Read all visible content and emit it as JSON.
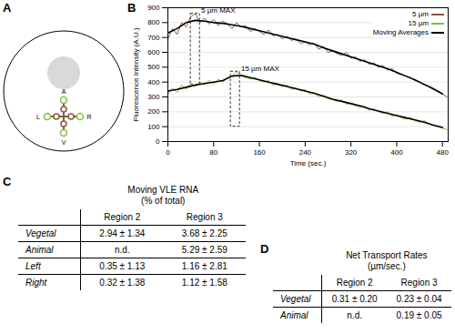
{
  "panel_a": {
    "label": "A",
    "points": [
      "A",
      "L",
      "R",
      "V"
    ]
  },
  "chart_data": {
    "label": "B",
    "type": "line",
    "x_label": "Time (sec.)",
    "y_label": "Fluorescence Intensity (A.U.)",
    "xlim": [
      0,
      490
    ],
    "xticks": [
      0,
      80,
      160,
      240,
      320,
      400,
      480
    ],
    "ylim": [
      0,
      900
    ],
    "yticks": [
      0,
      100,
      200,
      300,
      400,
      500,
      600,
      700,
      800,
      900
    ],
    "grid": true,
    "legend": "top-right",
    "series": [
      {
        "name": "5 µm",
        "color": "#8b5a3c",
        "x": [
          0,
          8,
          16,
          24,
          32,
          40,
          48,
          56,
          64,
          72,
          80,
          88,
          96,
          104,
          112,
          120,
          128,
          136,
          144,
          152,
          160,
          168,
          176,
          184,
          192,
          200,
          208,
          216,
          224,
          232,
          240,
          248,
          256,
          264,
          272,
          280,
          288,
          296,
          304,
          312,
          320,
          328,
          336,
          344,
          352,
          360,
          368,
          376,
          384,
          392,
          400,
          408,
          416,
          424,
          432,
          440,
          448,
          456,
          464,
          472,
          480,
          488
        ],
        "values": [
          690,
          760,
          720,
          800,
          770,
          840,
          860,
          800,
          830,
          790,
          820,
          780,
          810,
          790,
          760,
          800,
          770,
          780,
          740,
          760,
          740,
          720,
          750,
          710,
          720,
          690,
          710,
          680,
          690,
          660,
          670,
          650,
          660,
          620,
          640,
          600,
          610,
          590,
          580,
          600,
          560,
          570,
          540,
          550,
          520,
          530,
          500,
          510,
          480,
          490,
          460,
          450,
          440,
          430,
          410,
          400,
          380,
          370,
          350,
          340,
          320,
          300
        ]
      },
      {
        "name": "15 µm",
        "color": "#7cc242",
        "x": [
          0,
          8,
          16,
          24,
          32,
          40,
          48,
          56,
          64,
          72,
          80,
          88,
          96,
          104,
          112,
          120,
          128,
          136,
          144,
          152,
          160,
          168,
          176,
          184,
          192,
          200,
          208,
          216,
          224,
          232,
          240,
          248,
          256,
          264,
          272,
          280,
          288,
          296,
          304,
          312,
          320,
          328,
          336,
          344,
          352,
          360,
          368,
          376,
          384,
          392,
          400,
          408,
          416,
          424,
          432,
          440,
          448,
          456,
          464,
          472,
          480,
          488
        ],
        "values": [
          320,
          360,
          330,
          380,
          350,
          390,
          370,
          400,
          380,
          410,
          390,
          420,
          400,
          430,
          440,
          470,
          440,
          430,
          420,
          430,
          410,
          400,
          410,
          380,
          390,
          370,
          380,
          350,
          360,
          340,
          350,
          320,
          330,
          300,
          310,
          290,
          280,
          270,
          280,
          250,
          260,
          240,
          230,
          240,
          210,
          220,
          200,
          190,
          200,
          170,
          180,
          160,
          150,
          160,
          140,
          130,
          140,
          120,
          110,
          100,
          90,
          80
        ]
      },
      {
        "name": "Moving Averages",
        "color": "#000000",
        "x": [
          0,
          16,
          32,
          48,
          64,
          80,
          96,
          112,
          128,
          144,
          160,
          176,
          192,
          208,
          224,
          240,
          256,
          272,
          288,
          304,
          320,
          336,
          352,
          368,
          384,
          400,
          416,
          432,
          448,
          464,
          480,
          null,
          0,
          16,
          32,
          48,
          64,
          80,
          96,
          112,
          128,
          144,
          160,
          176,
          192,
          208,
          224,
          240,
          256,
          272,
          288,
          304,
          320,
          336,
          352,
          368,
          384,
          400,
          416,
          432,
          448,
          464,
          480
        ],
        "values": [
          730,
          760,
          800,
          815,
          810,
          800,
          795,
          785,
          775,
          760,
          745,
          730,
          715,
          700,
          685,
          670,
          655,
          630,
          610,
          590,
          570,
          550,
          530,
          510,
          490,
          465,
          440,
          415,
          385,
          355,
          320,
          null,
          340,
          350,
          365,
          380,
          390,
          400,
          410,
          440,
          445,
          430,
          415,
          400,
          385,
          370,
          355,
          340,
          325,
          305,
          285,
          270,
          255,
          240,
          220,
          205,
          190,
          175,
          160,
          145,
          130,
          110,
          95
        ]
      }
    ],
    "annotations": [
      {
        "text": "5 µm MAX",
        "x": 58,
        "y": 880,
        "x0": 40,
        "x1": 56,
        "y0": 380,
        "y1": 860
      },
      {
        "text": "15 µm MAX",
        "x": 128,
        "y": 490,
        "x0": 110,
        "x1": 126,
        "y0": 100,
        "y1": 470
      }
    ]
  },
  "panel_c": {
    "label": "C",
    "title": "Moving VLE RNA",
    "subtitle": "(% of total)",
    "columns": [
      "Region 2",
      "Region 3"
    ],
    "rows": [
      [
        "Vegetal",
        "2.94 ± 1.34",
        "3.68 ± 2.25"
      ],
      [
        "Animal",
        "n.d.",
        "5.29 ± 2.59"
      ],
      [
        "Left",
        "0.35 ± 1.13",
        "1.16 ± 2.81"
      ],
      [
        "Right",
        "0.32 ± 1.38",
        "1.12 ± 1.58"
      ]
    ]
  },
  "panel_d": {
    "label": "D",
    "title": "Net Transport Rates",
    "subtitle": "(µm/sec.)",
    "columns": [
      "Region 2",
      "Region 3"
    ],
    "rows": [
      [
        "Vegetal",
        "0.31 ± 0.20",
        "0.23 ± 0.04"
      ],
      [
        "Animal",
        "n.d.",
        "0.19 ± 0.05"
      ]
    ]
  }
}
